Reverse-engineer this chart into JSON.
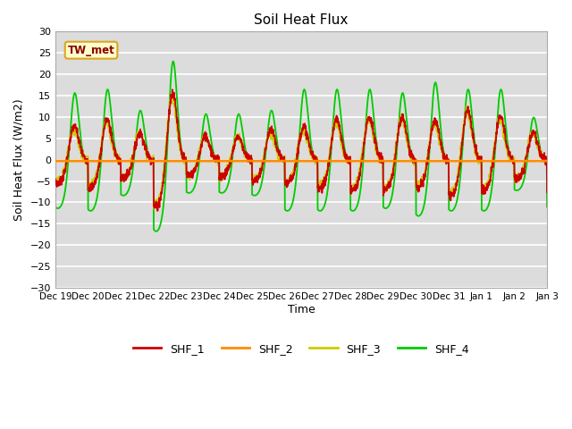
{
  "title": "Soil Heat Flux",
  "xlabel": "Time",
  "ylabel": "Soil Heat Flux (W/m2)",
  "ylim": [
    -30,
    30
  ],
  "yticks": [
    -30,
    -25,
    -20,
    -15,
    -10,
    -5,
    0,
    5,
    10,
    15,
    20,
    25,
    30
  ],
  "annotation_text": "TW_met",
  "annotation_color": "#8B0000",
  "annotation_bg": "#FFFFCC",
  "annotation_border": "#DAA520",
  "colors": {
    "SHF_1": "#CC0000",
    "SHF_2": "#FF8C00",
    "SHF_3": "#CCCC00",
    "SHF_4": "#00CC00"
  },
  "background_color": "#DCDCDC",
  "grid_color": "#FFFFFF",
  "x_tick_labels": [
    "Dec 19",
    "Dec 20",
    "Dec 21",
    "Dec 22",
    "Dec 23",
    "Dec 24",
    "Dec 25",
    "Dec 26",
    "Dec 27",
    "Dec 28",
    "Dec 29",
    "Dec 30",
    "Dec 31",
    "Jan 1",
    "Jan 2",
    "Jan 3"
  ],
  "num_days": 15,
  "figsize": [
    6.4,
    4.8
  ],
  "dpi": 100
}
